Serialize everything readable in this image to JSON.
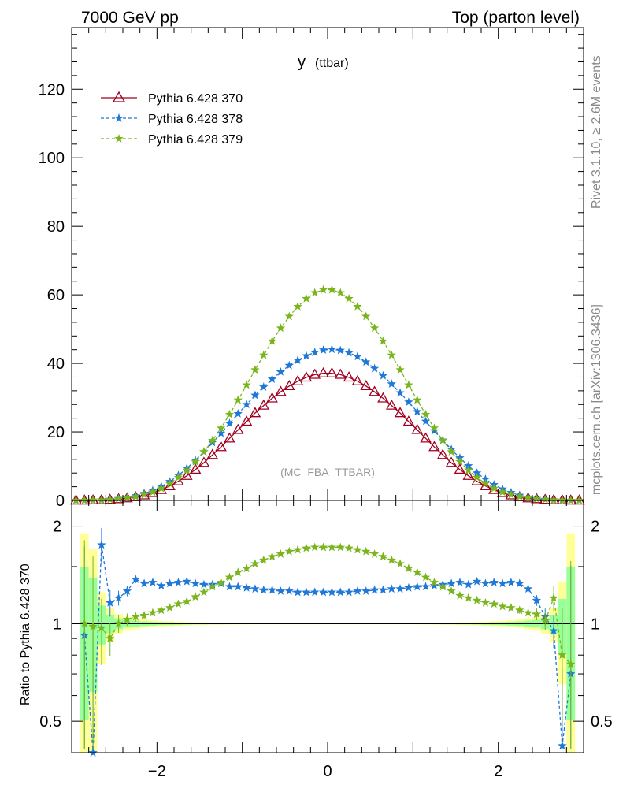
{
  "header": {
    "left": "7000 GeV pp",
    "right": "Top (parton level)"
  },
  "side_labels": {
    "rivet": "Rivet 3.1.10, ≥ 2.6M events",
    "mcplots": "mcplots.cern.ch [arXiv:1306.3436]"
  },
  "plot": {
    "title_main": "y",
    "title_sub": "(ttbar)",
    "analysis_tag": "(MC_FBA_TTBAR)",
    "ratio_ylabel": "Ratio to Pythia 6.428 370"
  },
  "colors": {
    "s370": "#a00020",
    "s378": "#1f78d8",
    "s379": "#7ab51d",
    "band_green": "#99ff99",
    "band_yellow": "#ffff99"
  },
  "chart_data": [
    {
      "type": "line",
      "panel": "main",
      "title": "y (ttbar)",
      "xlim": [
        -3.0,
        3.0
      ],
      "ylim": [
        0,
        138
      ],
      "yticks": [
        0,
        20,
        40,
        60,
        80,
        100,
        120
      ],
      "legend_position": "top-left",
      "x": [
        -2.95,
        -2.85,
        -2.75,
        -2.65,
        -2.55,
        -2.45,
        -2.35,
        -2.25,
        -2.15,
        -2.05,
        -1.95,
        -1.85,
        -1.75,
        -1.65,
        -1.55,
        -1.45,
        -1.35,
        -1.25,
        -1.15,
        -1.05,
        -0.95,
        -0.85,
        -0.75,
        -0.65,
        -0.55,
        -0.45,
        -0.35,
        -0.25,
        -0.15,
        -0.05,
        0.05,
        0.15,
        0.25,
        0.35,
        0.45,
        0.55,
        0.65,
        0.75,
        0.85,
        0.95,
        1.05,
        1.15,
        1.25,
        1.35,
        1.45,
        1.55,
        1.65,
        1.75,
        1.85,
        1.95,
        2.05,
        2.15,
        2.25,
        2.35,
        2.45,
        2.55,
        2.65,
        2.75,
        2.85,
        2.95
      ],
      "series": [
        {
          "name": "Pythia 6.428 370",
          "color": "#a00020",
          "marker": "open-triangle",
          "values": [
            0.0,
            0.0,
            0.05,
            0.1,
            0.2,
            0.4,
            0.65,
            1.0,
            1.5,
            2.2,
            3.1,
            4.2,
            5.6,
            7.2,
            9.0,
            11.0,
            13.3,
            15.6,
            18.1,
            20.6,
            23.0,
            25.5,
            27.7,
            29.8,
            31.7,
            33.4,
            34.8,
            35.9,
            36.7,
            37.1,
            37.1,
            36.7,
            35.9,
            34.8,
            33.4,
            31.7,
            29.8,
            27.7,
            25.5,
            23.0,
            20.6,
            18.1,
            15.6,
            13.3,
            11.0,
            9.0,
            7.2,
            5.6,
            4.2,
            3.1,
            2.2,
            1.5,
            1.0,
            0.65,
            0.4,
            0.2,
            0.1,
            0.05,
            0.0,
            0.0
          ]
        },
        {
          "name": "Pythia 6.428 378",
          "color": "#1f78d8",
          "marker": "star",
          "values": [
            0.0,
            0.0,
            0.05,
            0.15,
            0.3,
            0.55,
            0.9,
            1.35,
            2.0,
            2.9,
            4.1,
            5.5,
            7.3,
            9.4,
            11.7,
            14.2,
            16.9,
            19.6,
            22.5,
            25.3,
            28.0,
            30.7,
            33.1,
            35.4,
            37.5,
            39.4,
            40.9,
            42.2,
            43.2,
            43.9,
            44.1,
            43.8,
            43.1,
            42.0,
            40.4,
            38.5,
            36.4,
            34.0,
            31.4,
            28.7,
            25.9,
            23.1,
            20.3,
            17.6,
            14.9,
            12.4,
            10.1,
            8.0,
            6.2,
            4.6,
            3.3,
            2.3,
            1.5,
            0.95,
            0.55,
            0.3,
            0.15,
            0.05,
            0.0,
            0.0
          ]
        },
        {
          "name": "Pythia 6.428 379",
          "color": "#7ab51d",
          "marker": "star",
          "values": [
            0.0,
            0.0,
            0.05,
            0.1,
            0.22,
            0.45,
            0.7,
            1.1,
            1.65,
            2.45,
            3.5,
            4.9,
            6.7,
            8.8,
            11.3,
            14.2,
            17.5,
            21.1,
            25.1,
            29.3,
            33.7,
            38.1,
            42.4,
            46.5,
            50.3,
            53.7,
            56.6,
            58.9,
            60.6,
            61.5,
            61.5,
            60.6,
            58.9,
            56.6,
            53.7,
            50.3,
            46.5,
            42.4,
            38.1,
            33.7,
            29.3,
            25.1,
            21.1,
            17.5,
            14.2,
            11.3,
            8.8,
            6.7,
            4.9,
            3.5,
            2.45,
            1.65,
            1.1,
            0.7,
            0.45,
            0.22,
            0.1,
            0.05,
            0.0,
            0.0
          ]
        }
      ]
    },
    {
      "type": "line",
      "panel": "ratio",
      "ylabel": "Ratio to Pythia 6.428 370",
      "log_y": true,
      "xlim": [
        -3.0,
        3.0
      ],
      "ylim": [
        0.4,
        2.4
      ],
      "xticks": [
        -2,
        0,
        2
      ],
      "yticks": [
        0.5,
        1,
        2
      ],
      "reference_line": 1.0,
      "x": [
        -2.85,
        -2.75,
        -2.65,
        -2.55,
        -2.45,
        -2.35,
        -2.25,
        -2.15,
        -2.05,
        -1.95,
        -1.85,
        -1.75,
        -1.65,
        -1.55,
        -1.45,
        -1.35,
        -1.25,
        -1.15,
        -1.05,
        -0.95,
        -0.85,
        -0.75,
        -0.65,
        -0.55,
        -0.45,
        -0.35,
        -0.25,
        -0.15,
        -0.05,
        0.05,
        0.15,
        0.25,
        0.35,
        0.45,
        0.55,
        0.65,
        0.75,
        0.85,
        0.95,
        1.05,
        1.15,
        1.25,
        1.35,
        1.45,
        1.55,
        1.65,
        1.75,
        1.85,
        1.95,
        2.05,
        2.15,
        2.25,
        2.35,
        2.45,
        2.55,
        2.65,
        2.75,
        2.85
      ],
      "series": [
        {
          "name": "Pythia 6.428 378",
          "color": "#1f78d8",
          "values": [
            0.92,
            0.37,
            1.75,
            1.16,
            1.2,
            1.26,
            1.37,
            1.33,
            1.34,
            1.31,
            1.33,
            1.34,
            1.35,
            1.33,
            1.32,
            1.32,
            1.33,
            1.3,
            1.3,
            1.29,
            1.28,
            1.27,
            1.27,
            1.26,
            1.26,
            1.25,
            1.25,
            1.25,
            1.25,
            1.25,
            1.25,
            1.25,
            1.26,
            1.26,
            1.27,
            1.27,
            1.28,
            1.28,
            1.29,
            1.3,
            1.3,
            1.31,
            1.32,
            1.33,
            1.34,
            1.32,
            1.35,
            1.33,
            1.34,
            1.33,
            1.34,
            1.33,
            1.28,
            1.18,
            1.05,
            0.95,
            0.42,
            0.7
          ]
        },
        {
          "name": "Pythia 6.428 379",
          "color": "#7ab51d",
          "values": [
            1.0,
            0.98,
            0.97,
            0.9,
            1.0,
            1.03,
            1.05,
            1.06,
            1.08,
            1.1,
            1.12,
            1.15,
            1.17,
            1.21,
            1.25,
            1.3,
            1.34,
            1.39,
            1.44,
            1.48,
            1.53,
            1.57,
            1.61,
            1.64,
            1.67,
            1.69,
            1.71,
            1.72,
            1.72,
            1.72,
            1.72,
            1.71,
            1.69,
            1.67,
            1.64,
            1.61,
            1.57,
            1.53,
            1.48,
            1.44,
            1.39,
            1.34,
            1.3,
            1.26,
            1.22,
            1.2,
            1.18,
            1.16,
            1.15,
            1.13,
            1.12,
            1.1,
            1.08,
            1.07,
            1.02,
            1.2,
            0.8,
            0.75
          ]
        }
      ]
    }
  ]
}
